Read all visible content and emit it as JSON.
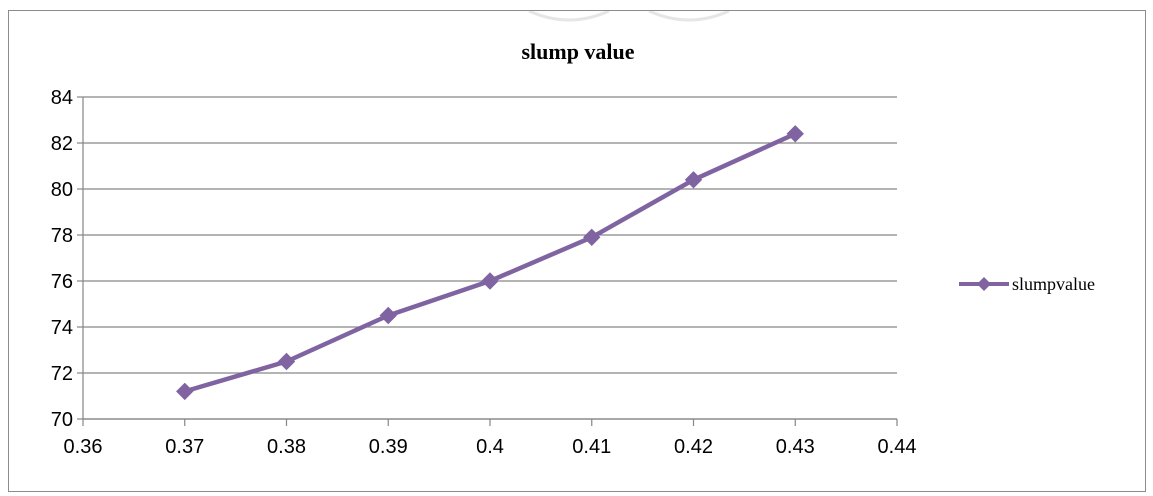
{
  "chart_data": {
    "type": "line",
    "title": "slump value",
    "xlabel": "",
    "ylabel": "",
    "xlim": [
      0.36,
      0.44
    ],
    "ylim": [
      70,
      84
    ],
    "x_ticks": [
      0.36,
      0.37,
      0.38,
      0.39,
      0.4,
      0.41,
      0.42,
      0.43,
      0.44
    ],
    "x_tick_labels": [
      "0.36",
      "0.37",
      "0.38",
      "0.39",
      "0.4",
      "0.41",
      "0.42",
      "0.43",
      "0.44"
    ],
    "y_ticks": [
      70,
      72,
      74,
      76,
      78,
      80,
      82,
      84
    ],
    "y_tick_labels": [
      "70",
      "72",
      "74",
      "76",
      "78",
      "80",
      "82",
      "84"
    ],
    "grid": "horizontal",
    "legend_position": "right",
    "series": [
      {
        "name": "slumpvalue",
        "color": "#8064a2",
        "marker": "diamond",
        "x": [
          0.37,
          0.38,
          0.39,
          0.4,
          0.41,
          0.42,
          0.43
        ],
        "y": [
          71.2,
          72.5,
          74.5,
          76.0,
          77.9,
          80.4,
          82.4
        ]
      }
    ]
  }
}
